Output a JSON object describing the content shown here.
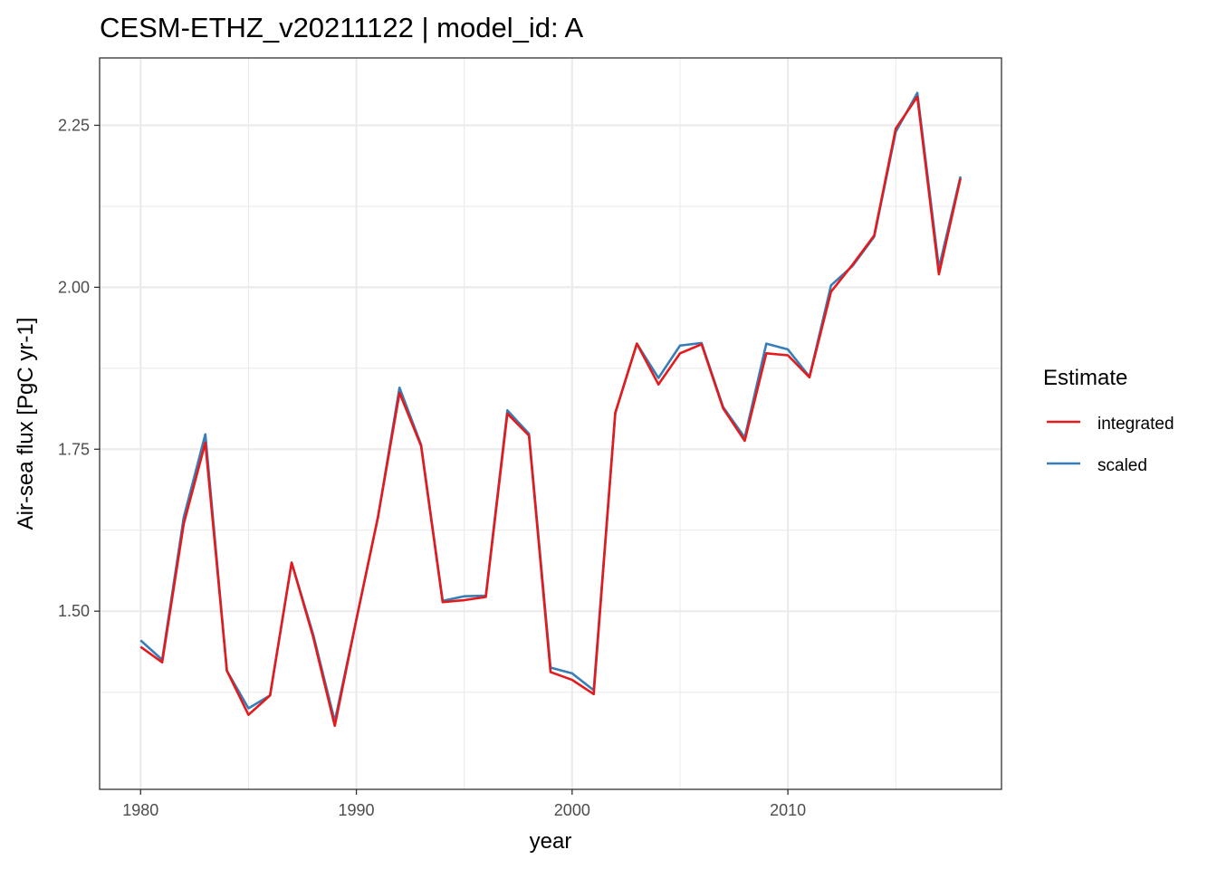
{
  "chart_data": {
    "type": "line",
    "title": "CESM-ETHZ_v20211122 | model_id: A",
    "xlabel": "year",
    "ylabel": "Air-sea flux [PgC yr-1]",
    "xlim": [
      1978.1,
      2019.9
    ],
    "ylim": [
      1.225,
      2.354
    ],
    "x_ticks": [
      1980,
      1990,
      2000,
      2010
    ],
    "x_tick_labels": [
      "1980",
      "1990",
      "2000",
      "2010"
    ],
    "y_ticks": [
      1.5,
      1.75,
      2.0,
      2.25
    ],
    "y_tick_labels": [
      "1.50",
      "1.75",
      "2.00",
      "2.25"
    ],
    "grid": true,
    "legend": {
      "title": "Estimate",
      "position": "right"
    },
    "x": [
      1980,
      1981,
      1982,
      1983,
      1984,
      1985,
      1986,
      1987,
      1988,
      1989,
      1990,
      1991,
      1992,
      1993,
      1994,
      1995,
      1996,
      1997,
      1998,
      1999,
      2000,
      2001,
      2002,
      2003,
      2004,
      2005,
      2006,
      2007,
      2008,
      2009,
      2010,
      2011,
      2012,
      2013,
      2014,
      2015,
      2016,
      2017,
      2018
    ],
    "series": [
      {
        "name": "integrated",
        "color": "#e41a1c",
        "values": [
          1.445,
          1.421,
          1.635,
          1.76,
          1.408,
          1.34,
          1.37,
          1.575,
          1.46,
          1.323,
          1.487,
          1.645,
          1.837,
          1.755,
          1.514,
          1.517,
          1.522,
          1.805,
          1.771,
          1.406,
          1.394,
          1.372,
          1.806,
          1.913,
          1.85,
          1.898,
          1.912,
          1.813,
          1.763,
          1.898,
          1.895,
          1.861,
          1.993,
          2.035,
          2.08,
          2.245,
          2.294,
          2.02,
          2.168
        ]
      },
      {
        "name": "scaled",
        "color": "#377eb8",
        "values": [
          1.455,
          1.425,
          1.645,
          1.773,
          1.408,
          1.35,
          1.37,
          1.575,
          1.464,
          1.33,
          1.487,
          1.645,
          1.845,
          1.757,
          1.516,
          1.523,
          1.524,
          1.81,
          1.774,
          1.413,
          1.404,
          1.378,
          1.806,
          1.913,
          1.86,
          1.91,
          1.914,
          1.815,
          1.768,
          1.913,
          1.904,
          1.862,
          2.003,
          2.033,
          2.078,
          2.24,
          2.3,
          2.03,
          2.171
        ]
      }
    ]
  }
}
